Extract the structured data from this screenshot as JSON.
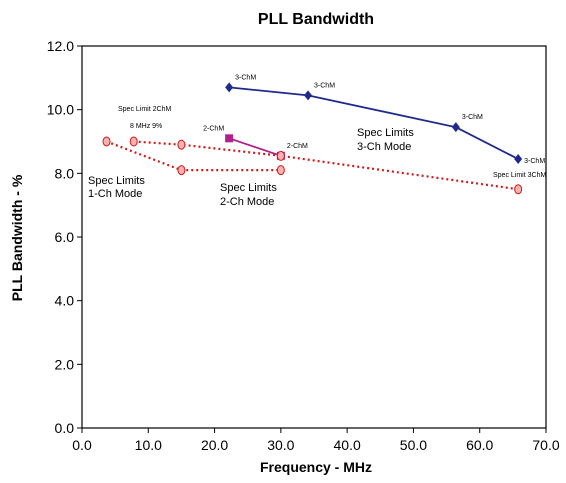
{
  "chart_data": {
    "type": "line",
    "title": "PLL Bandwidth",
    "xlabel": "Frequency - MHz",
    "ylabel": "PLL Bandwidth - %",
    "xlim": [
      0,
      70
    ],
    "ylim": [
      0,
      12
    ],
    "xticks": [
      "0.0",
      "10.0",
      "20.0",
      "30.0",
      "40.0",
      "50.0",
      "60.0",
      "70.0"
    ],
    "yticks": [
      "0.0",
      "2.0",
      "4.0",
      "6.0",
      "8.0",
      "10.0",
      "12.0"
    ],
    "grid": false,
    "series": [
      {
        "key": "ch3",
        "color": "#1f2a8c",
        "style": "solid",
        "marker": "diamond",
        "points": [
          [
            22.2,
            10.7
          ],
          [
            34.1,
            10.45
          ],
          [
            56.4,
            9.45
          ],
          [
            65.8,
            8.45
          ]
        ],
        "point_labels": [
          "3-ChM",
          "3-ChM",
          "3-ChM",
          "3-ChM"
        ]
      },
      {
        "key": "ch2",
        "color": "#b0218c",
        "style": "solid",
        "marker": "square",
        "points": [
          [
            22.2,
            9.1
          ],
          [
            30.0,
            8.55
          ]
        ],
        "point_labels": [
          "2-ChM",
          "2-ChM"
        ]
      },
      {
        "key": "spec1",
        "color": "#d11a1a",
        "style": "dotted",
        "marker": "circle",
        "points": [
          [
            3.7,
            9.0
          ],
          [
            15.0,
            8.1
          ],
          [
            30.0,
            8.1
          ]
        ]
      },
      {
        "key": "spec2",
        "color": "#d11a1a",
        "style": "dotted",
        "marker": "circle",
        "points": [
          [
            7.8,
            9.0
          ],
          [
            15.0,
            8.9
          ],
          [
            30.0,
            8.55
          ],
          [
            65.8,
            7.5
          ]
        ]
      }
    ],
    "annotations": {
      "spec_1ch": [
        "Spec Limits",
        "1-Ch Mode"
      ],
      "spec_2ch": [
        "Spec Limits",
        "2-Ch Mode"
      ],
      "spec_3ch": [
        "Spec Limits",
        "3-Ch Mode"
      ],
      "spec_limit_2chm": "Spec Limit 2ChM",
      "mhz_note": "8 MHz 9%",
      "spec_limit_3chm": "Spec Limit 3ChM"
    }
  }
}
